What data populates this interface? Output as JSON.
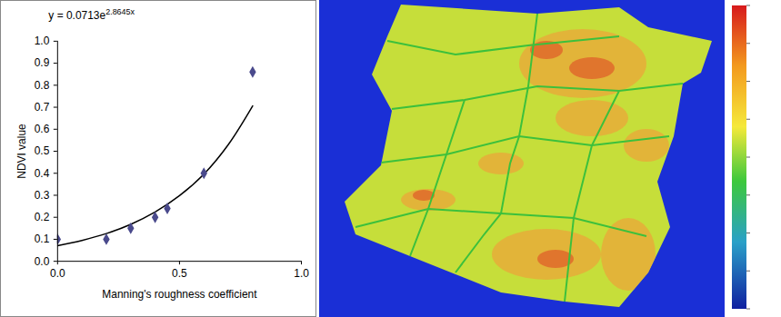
{
  "chart_data": {
    "type": "scatter",
    "annotation": {
      "text": "y = 0.0713e",
      "superscript": "2.8645x"
    },
    "x_label": "Manning's roughness coefficient",
    "y_label": "NDVI value",
    "x": [
      0,
      0.2,
      0.3,
      0.4,
      0.45,
      0.6,
      0.8
    ],
    "values": [
      0.1,
      0.1,
      0.15,
      0.2,
      0.24,
      0.4,
      0.86
    ],
    "color": "#4a4a8c",
    "marker": "diamond",
    "trendline": {
      "type": "line",
      "color": "#000000",
      "line_style": "solid",
      "x": [
        0,
        0.1,
        0.2,
        0.3,
        0.4,
        0.5,
        0.6,
        0.7,
        0.8
      ],
      "values": [
        0.071,
        0.095,
        0.126,
        0.168,
        0.224,
        0.298,
        0.396,
        0.53,
        0.706
      ]
    },
    "xlim": [
      0,
      1
    ],
    "xticks": [
      0,
      0.5,
      1
    ],
    "ylim": [
      0,
      1
    ],
    "yticks": [
      0,
      0.1,
      0.2,
      0.3,
      0.4,
      0.5,
      0.6,
      0.7,
      0.8,
      0.9,
      1
    ],
    "grid": false
  }
}
